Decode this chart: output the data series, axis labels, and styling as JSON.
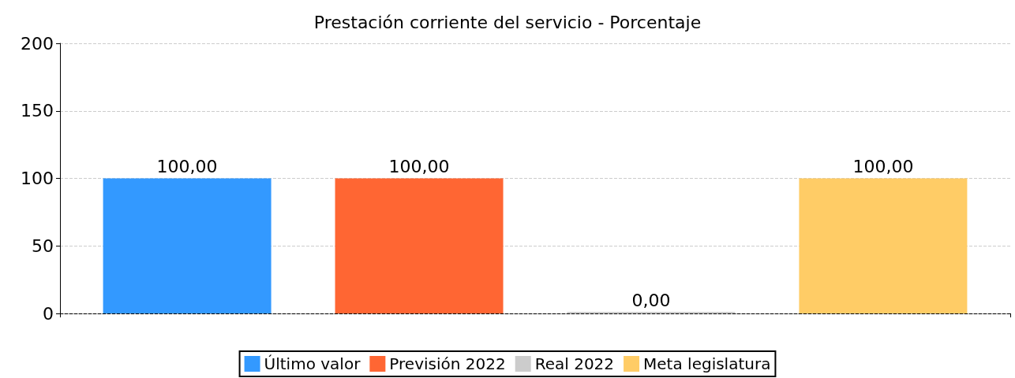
{
  "chart_data": {
    "type": "bar",
    "title": "Prestación corriente del servicio - Porcentaje",
    "categories": [
      null
    ],
    "series": [
      {
        "name": "Último valor",
        "color": "#3399ff",
        "values": [
          100
        ],
        "value_labels": [
          "100,00"
        ]
      },
      {
        "name": "Previsión 2022",
        "color": "#ff6633",
        "values": [
          100
        ],
        "value_labels": [
          "100,00"
        ]
      },
      {
        "name": "Real 2022",
        "color": "#cccccc",
        "values": [
          0
        ],
        "value_labels": [
          "0,00"
        ]
      },
      {
        "name": "Meta legislatura",
        "color": "#ffcc66",
        "values": [
          100
        ],
        "value_labels": [
          "100,00"
        ]
      }
    ],
    "ylim": [
      0,
      200
    ],
    "yticks": [
      0,
      50,
      100,
      150,
      200
    ],
    "grid": "y",
    "legend": "bottom"
  }
}
